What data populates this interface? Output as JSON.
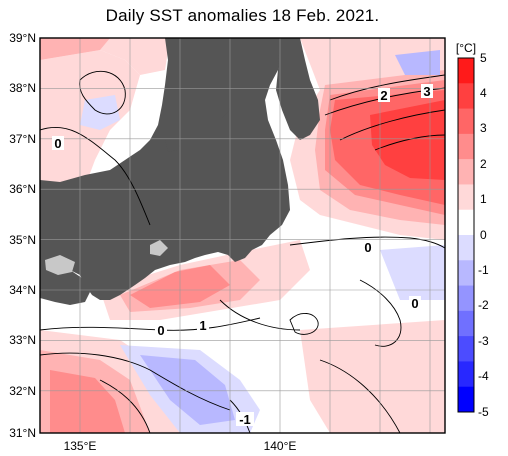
{
  "title": "Daily SST anomalies 18 Feb. 2021.",
  "lat_labels": [
    "39°N",
    "38°N",
    "37°N",
    "36°N",
    "35°N",
    "34°N",
    "33°N",
    "32°N",
    "31°N"
  ],
  "lon_labels": [
    "135°E",
    "140°E"
  ],
  "colorbar": {
    "unit": "[°C]",
    "ticks": [
      "5",
      "4",
      "3",
      "2",
      "1",
      "0",
      "-1",
      "-2",
      "-3",
      "-4",
      "-5"
    ],
    "colors": [
      "#ff1a1a",
      "#ff4040",
      "#ff6666",
      "#ff8c8c",
      "#ffb3b3",
      "#ffd9d9",
      "#ffffff",
      "#dcdcff",
      "#b8b8ff",
      "#9494ff",
      "#7070ff",
      "#4c4cff",
      "#2828ff",
      "#0000ff"
    ]
  },
  "contour_labels": [
    {
      "text": "0",
      "name": "contour-label-0-west"
    },
    {
      "text": "2",
      "name": "contour-label-2"
    },
    {
      "text": "3",
      "name": "contour-label-3"
    },
    {
      "text": "0",
      "name": "contour-label-0-central"
    },
    {
      "text": "0",
      "name": "contour-label-0-southeast"
    },
    {
      "text": "0",
      "name": "contour-label-0-south"
    },
    {
      "text": "1",
      "name": "contour-label-1-south"
    },
    {
      "text": "-1",
      "name": "contour-label-minus1"
    }
  ],
  "colors": {
    "land": "#555555",
    "lake": "#c8c8c8",
    "frame": "#000000",
    "grid": "#999999"
  }
}
